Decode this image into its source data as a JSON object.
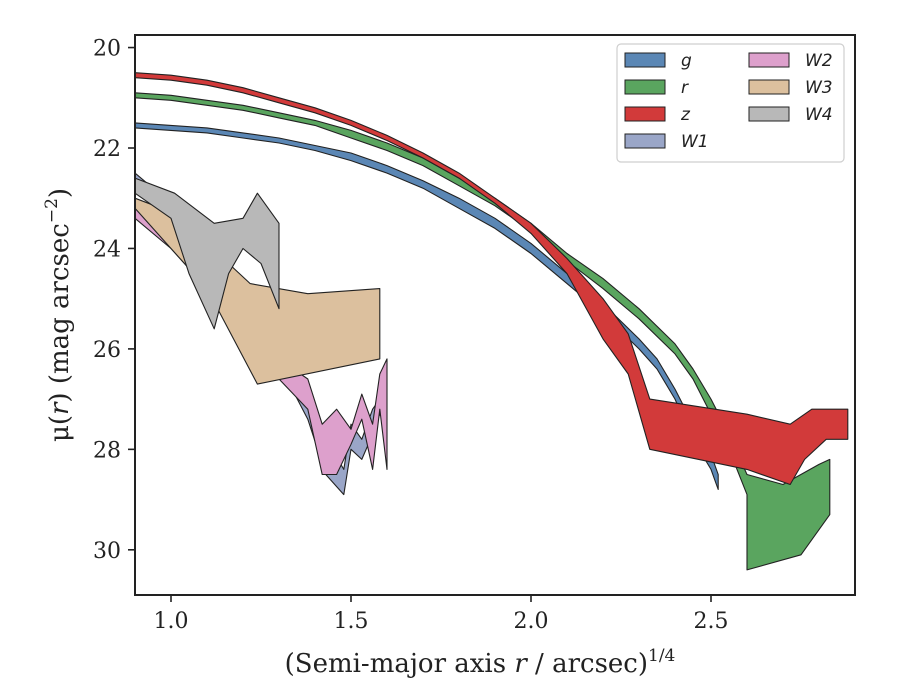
{
  "chart_data": {
    "type": "area",
    "xlabel_pre": "(Semi-major axis ",
    "xlabel_var": "r",
    "xlabel_post": " / arcsec)",
    "xlabel_sup": "1/4",
    "ylabel_pre": "μ(",
    "ylabel_var": "r",
    "ylabel_post": ") (mag arcsec",
    "ylabel_sup": "−2",
    "ylabel_end": ")",
    "xlim": [
      0.9,
      2.9
    ],
    "ylim": [
      30.9,
      19.75
    ],
    "y_inverted": true,
    "xticks": [
      1.0,
      1.5,
      2.0,
      2.5
    ],
    "xtick_labels": [
      "1.0",
      "1.5",
      "2.0",
      "2.5"
    ],
    "yticks": [
      20,
      22,
      24,
      26,
      28,
      30
    ],
    "ytick_labels": [
      "20",
      "22",
      "24",
      "26",
      "28",
      "30"
    ],
    "legend_position": "top-right",
    "legend_columns": 2,
    "series": [
      {
        "name": "W1",
        "color": "#9aa6c8",
        "upper": [
          [
            0.9,
            22.5
          ],
          [
            1.0,
            23.1
          ],
          [
            1.1,
            24.0
          ],
          [
            1.2,
            24.8
          ],
          [
            1.3,
            25.8
          ],
          [
            1.38,
            26.8
          ],
          [
            1.43,
            27.8
          ],
          [
            1.48,
            28.4
          ],
          [
            1.5,
            27.5
          ],
          [
            1.53,
            27.8
          ],
          [
            1.56,
            27.2
          ],
          [
            1.58,
            27.0
          ]
        ],
        "lower": [
          [
            0.9,
            22.8
          ],
          [
            1.0,
            23.4
          ],
          [
            1.1,
            24.3
          ],
          [
            1.2,
            25.2
          ],
          [
            1.3,
            26.3
          ],
          [
            1.38,
            27.4
          ],
          [
            1.43,
            28.5
          ],
          [
            1.48,
            28.9
          ],
          [
            1.5,
            28.0
          ],
          [
            1.53,
            28.2
          ],
          [
            1.56,
            27.7
          ],
          [
            1.58,
            27.3
          ]
        ]
      },
      {
        "name": "W2",
        "color": "#dda0cc",
        "upper": [
          [
            0.9,
            23.0
          ],
          [
            1.0,
            23.6
          ],
          [
            1.1,
            24.3
          ],
          [
            1.2,
            25.0
          ],
          [
            1.3,
            26.2
          ],
          [
            1.38,
            26.6
          ],
          [
            1.42,
            27.5
          ],
          [
            1.46,
            27.2
          ],
          [
            1.5,
            27.6
          ],
          [
            1.53,
            26.9
          ],
          [
            1.56,
            27.5
          ],
          [
            1.58,
            26.5
          ],
          [
            1.6,
            26.2
          ]
        ],
        "lower": [
          [
            0.9,
            23.4
          ],
          [
            1.0,
            24.0
          ],
          [
            1.1,
            24.8
          ],
          [
            1.2,
            25.6
          ],
          [
            1.3,
            26.6
          ],
          [
            1.38,
            27.2
          ],
          [
            1.42,
            28.5
          ],
          [
            1.46,
            28.5
          ],
          [
            1.5,
            27.9
          ],
          [
            1.53,
            27.4
          ],
          [
            1.56,
            28.4
          ],
          [
            1.58,
            27.2
          ],
          [
            1.6,
            28.4
          ]
        ]
      },
      {
        "name": "W3",
        "color": "#dcc09e",
        "upper": [
          [
            0.9,
            23.0
          ],
          [
            1.01,
            23.3
          ],
          [
            1.22,
            24.7
          ],
          [
            1.38,
            24.9
          ],
          [
            1.58,
            24.8
          ]
        ],
        "lower": [
          [
            0.9,
            23.2
          ],
          [
            1.0,
            24.0
          ],
          [
            1.1,
            24.8
          ],
          [
            1.24,
            26.7
          ],
          [
            1.58,
            26.2
          ]
        ]
      },
      {
        "name": "W4",
        "color": "#b8b8b8",
        "upper": [
          [
            0.9,
            22.6
          ],
          [
            1.01,
            22.9
          ],
          [
            1.12,
            23.5
          ],
          [
            1.2,
            23.4
          ],
          [
            1.24,
            22.9
          ],
          [
            1.3,
            23.5
          ]
        ],
        "lower": [
          [
            0.9,
            22.9
          ],
          [
            1.0,
            23.4
          ],
          [
            1.05,
            24.5
          ],
          [
            1.12,
            25.6
          ],
          [
            1.16,
            24.5
          ],
          [
            1.2,
            24.0
          ],
          [
            1.25,
            24.3
          ],
          [
            1.3,
            25.2
          ]
        ]
      },
      {
        "name": "g",
        "color": "#5b87b5",
        "upper": [
          [
            0.9,
            21.5
          ],
          [
            1.0,
            21.55
          ],
          [
            1.1,
            21.6
          ],
          [
            1.2,
            21.7
          ],
          [
            1.3,
            21.8
          ],
          [
            1.4,
            21.95
          ],
          [
            1.5,
            22.1
          ],
          [
            1.6,
            22.35
          ],
          [
            1.7,
            22.65
          ],
          [
            1.8,
            23.0
          ],
          [
            1.9,
            23.4
          ],
          [
            2.0,
            23.9
          ],
          [
            2.1,
            24.5
          ],
          [
            2.2,
            25.1
          ],
          [
            2.3,
            25.8
          ],
          [
            2.35,
            26.2
          ],
          [
            2.4,
            26.8
          ],
          [
            2.45,
            27.5
          ],
          [
            2.5,
            28.1
          ],
          [
            2.52,
            28.5
          ]
        ],
        "lower": [
          [
            0.9,
            21.6
          ],
          [
            1.0,
            21.65
          ],
          [
            1.1,
            21.7
          ],
          [
            1.2,
            21.8
          ],
          [
            1.3,
            21.9
          ],
          [
            1.4,
            22.05
          ],
          [
            1.5,
            22.25
          ],
          [
            1.6,
            22.5
          ],
          [
            1.7,
            22.8
          ],
          [
            1.8,
            23.2
          ],
          [
            1.9,
            23.6
          ],
          [
            2.0,
            24.1
          ],
          [
            2.1,
            24.7
          ],
          [
            2.2,
            25.3
          ],
          [
            2.3,
            26.0
          ],
          [
            2.35,
            26.4
          ],
          [
            2.4,
            27.0
          ],
          [
            2.45,
            27.8
          ],
          [
            2.5,
            28.4
          ],
          [
            2.52,
            28.8
          ]
        ]
      },
      {
        "name": "r",
        "color": "#5aa55f",
        "upper": [
          [
            0.9,
            20.9
          ],
          [
            1.0,
            20.95
          ],
          [
            1.1,
            21.05
          ],
          [
            1.2,
            21.15
          ],
          [
            1.3,
            21.3
          ],
          [
            1.4,
            21.45
          ],
          [
            1.5,
            21.65
          ],
          [
            1.6,
            21.9
          ],
          [
            1.7,
            22.2
          ],
          [
            1.8,
            22.6
          ],
          [
            1.9,
            23.0
          ],
          [
            2.0,
            23.5
          ],
          [
            2.1,
            24.1
          ],
          [
            2.2,
            24.6
          ],
          [
            2.3,
            25.2
          ],
          [
            2.4,
            25.9
          ],
          [
            2.45,
            26.4
          ],
          [
            2.5,
            27.0
          ],
          [
            2.55,
            27.7
          ],
          [
            2.6,
            28.5
          ],
          [
            2.7,
            28.7
          ],
          [
            2.8,
            28.3
          ],
          [
            2.83,
            28.2
          ]
        ],
        "lower": [
          [
            0.9,
            21.0
          ],
          [
            1.0,
            21.05
          ],
          [
            1.1,
            21.15
          ],
          [
            1.2,
            21.25
          ],
          [
            1.3,
            21.4
          ],
          [
            1.4,
            21.55
          ],
          [
            1.5,
            21.8
          ],
          [
            1.6,
            22.05
          ],
          [
            1.7,
            22.35
          ],
          [
            1.8,
            22.75
          ],
          [
            1.9,
            23.15
          ],
          [
            2.0,
            23.65
          ],
          [
            2.1,
            24.25
          ],
          [
            2.2,
            24.8
          ],
          [
            2.3,
            25.4
          ],
          [
            2.4,
            26.1
          ],
          [
            2.45,
            26.6
          ],
          [
            2.5,
            27.3
          ],
          [
            2.55,
            28.0
          ],
          [
            2.6,
            28.9
          ],
          [
            2.6,
            30.4
          ],
          [
            2.75,
            30.1
          ],
          [
            2.83,
            29.3
          ]
        ]
      },
      {
        "name": "z",
        "color": "#d23a3a",
        "upper": [
          [
            0.9,
            20.5
          ],
          [
            1.0,
            20.55
          ],
          [
            1.1,
            20.65
          ],
          [
            1.2,
            20.8
          ],
          [
            1.3,
            21.0
          ],
          [
            1.4,
            21.2
          ],
          [
            1.5,
            21.45
          ],
          [
            1.6,
            21.75
          ],
          [
            1.7,
            22.1
          ],
          [
            1.8,
            22.5
          ],
          [
            1.9,
            23.0
          ],
          [
            2.0,
            23.5
          ],
          [
            2.1,
            24.2
          ],
          [
            2.2,
            25.0
          ],
          [
            2.27,
            25.7
          ],
          [
            2.33,
            27.0
          ],
          [
            2.6,
            27.3
          ],
          [
            2.72,
            27.5
          ],
          [
            2.78,
            27.2
          ],
          [
            2.82,
            27.2
          ],
          [
            2.88,
            27.2
          ]
        ],
        "lower": [
          [
            0.9,
            20.6
          ],
          [
            1.0,
            20.65
          ],
          [
            1.1,
            20.75
          ],
          [
            1.2,
            20.9
          ],
          [
            1.3,
            21.1
          ],
          [
            1.4,
            21.3
          ],
          [
            1.5,
            21.55
          ],
          [
            1.6,
            21.85
          ],
          [
            1.7,
            22.2
          ],
          [
            1.8,
            22.6
          ],
          [
            1.9,
            23.1
          ],
          [
            2.0,
            23.7
          ],
          [
            2.1,
            24.5
          ],
          [
            2.2,
            25.8
          ],
          [
            2.27,
            26.5
          ],
          [
            2.33,
            28.0
          ],
          [
            2.6,
            28.4
          ],
          [
            2.72,
            28.7
          ],
          [
            2.76,
            28.2
          ],
          [
            2.82,
            27.8
          ],
          [
            2.88,
            27.8
          ]
        ]
      }
    ],
    "legend_order": [
      "g",
      "r",
      "z",
      "W1",
      "W2",
      "W3",
      "W4"
    ]
  }
}
